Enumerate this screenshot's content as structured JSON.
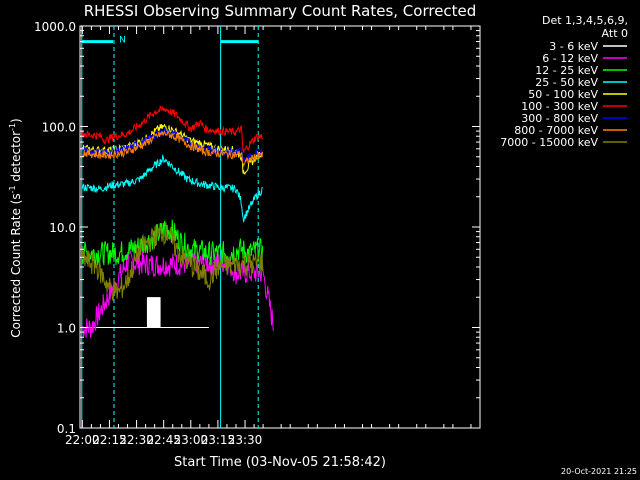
{
  "chart_data": {
    "type": "line",
    "title": "RHESSI Observing Summary Count Rates, Corrected",
    "xlabel": "Start Time (03-Nov-05 21:58:42)",
    "ylabel_main": "Corrected Count Rate (s",
    "ylabel_sup1": "-1",
    "ylabel_mid": " detector",
    "ylabel_sup2": "-1",
    "ylabel_end": ")",
    "yscale": "log",
    "ylim": [
      0.1,
      1000
    ],
    "xlim_min": [
      1318.7,
      1540
    ],
    "x_tick_minutes": [
      1320,
      1335,
      1350,
      1365,
      1380,
      1395,
      1410
    ],
    "x_tick_labels": [
      "22:00",
      "22:15",
      "22:30",
      "22:45",
      "23:00",
      "23:15",
      "23:30"
    ],
    "y_tick_values": [
      0.1,
      1.0,
      10.0,
      100.0,
      1000.0
    ],
    "y_tick_labels": [
      "0.1",
      "1.0",
      "10.0",
      "100.0",
      "1000.0"
    ],
    "legend_header": [
      "Det 1,3,4,5,6,9,",
      "Att 0"
    ],
    "legend_placement": "right",
    "vlines_dashed": [
      1337.5,
      1417.3
    ],
    "vlines_solid": [
      1319.7,
      1396.5
    ],
    "night_bars": [
      {
        "x": [
          1319.7,
          1337.0
        ],
        "y": 700
      },
      {
        "x": [
          1396.5,
          1417.3
        ],
        "y": 700
      }
    ],
    "night_label": "N",
    "series": [
      {
        "name": "3 - 6 keV",
        "color": "#000000",
        "points": [
          [
            1320,
            1
          ],
          [
            1390,
            1
          ]
        ]
      },
      {
        "name": "6 - 12 keV",
        "color": "#ff00ff",
        "points": [
          [
            1320,
            1
          ],
          [
            1325,
            1
          ],
          [
            1345,
            4.5
          ],
          [
            1360,
            4.2
          ],
          [
            1375,
            4.3
          ],
          [
            1390,
            4.4
          ],
          [
            1400,
            4.5
          ],
          [
            1405,
            3.5
          ],
          [
            1420,
            3.5
          ],
          [
            1426,
            1
          ]
        ]
      },
      {
        "name": "12 - 25 keV",
        "color": "#00ff00",
        "points": [
          [
            1320,
            5.5
          ],
          [
            1340,
            5.5
          ],
          [
            1352,
            6.5
          ],
          [
            1360,
            8
          ],
          [
            1364,
            9
          ],
          [
            1366,
            10
          ],
          [
            1370,
            9
          ],
          [
            1375,
            7
          ],
          [
            1380,
            6
          ],
          [
            1390,
            5.5
          ],
          [
            1400,
            5.5
          ],
          [
            1408,
            6
          ],
          [
            1412,
            5.5
          ],
          [
            1418,
            6
          ],
          [
            1420,
            5.5
          ]
        ]
      },
      {
        "name": "25 - 50 keV",
        "color": "#00ffff",
        "points": [
          [
            1320,
            25
          ],
          [
            1330,
            24
          ],
          [
            1336,
            26
          ],
          [
            1345,
            27
          ],
          [
            1352,
            30
          ],
          [
            1358,
            38
          ],
          [
            1365,
            48
          ],
          [
            1370,
            40
          ],
          [
            1378,
            30
          ],
          [
            1385,
            27
          ],
          [
            1395,
            25
          ],
          [
            1405,
            24
          ],
          [
            1408,
            18
          ],
          [
            1409,
            12
          ],
          [
            1412,
            15
          ],
          [
            1416,
            20
          ],
          [
            1420,
            24
          ]
        ]
      },
      {
        "name": "50 - 100 keV",
        "color": "#ffff00",
        "points": [
          [
            1320,
            60
          ],
          [
            1330,
            58
          ],
          [
            1336,
            58
          ],
          [
            1345,
            62
          ],
          [
            1355,
            75
          ],
          [
            1362,
            95
          ],
          [
            1366,
            100
          ],
          [
            1372,
            88
          ],
          [
            1380,
            72
          ],
          [
            1388,
            66
          ],
          [
            1395,
            60
          ],
          [
            1405,
            58
          ],
          [
            1408,
            50
          ],
          [
            1409,
            35
          ],
          [
            1412,
            40
          ],
          [
            1416,
            50
          ],
          [
            1420,
            55
          ]
        ]
      },
      {
        "name": "100 - 300 keV",
        "color": "#ff0000",
        "points": [
          [
            1320,
            85
          ],
          [
            1330,
            80
          ],
          [
            1333,
            72
          ],
          [
            1336,
            78
          ],
          [
            1345,
            85
          ],
          [
            1352,
            105
          ],
          [
            1360,
            140
          ],
          [
            1366,
            150
          ],
          [
            1372,
            130
          ],
          [
            1380,
            95
          ],
          [
            1385,
            110
          ],
          [
            1388,
            95
          ],
          [
            1395,
            90
          ],
          [
            1405,
            88
          ],
          [
            1408,
            95
          ],
          [
            1409,
            55
          ],
          [
            1412,
            65
          ],
          [
            1416,
            78
          ],
          [
            1420,
            80
          ]
        ]
      },
      {
        "name": "300 - 800 keV",
        "color": "#0000ff",
        "points": [
          [
            1320,
            58
          ],
          [
            1330,
            55
          ],
          [
            1336,
            57
          ],
          [
            1345,
            60
          ],
          [
            1355,
            72
          ],
          [
            1362,
            85
          ],
          [
            1366,
            90
          ],
          [
            1372,
            82
          ],
          [
            1380,
            68
          ],
          [
            1388,
            60
          ],
          [
            1395,
            58
          ],
          [
            1405,
            56
          ],
          [
            1408,
            58
          ],
          [
            1409,
            45
          ],
          [
            1412,
            50
          ],
          [
            1416,
            54
          ],
          [
            1420,
            55
          ]
        ]
      },
      {
        "name": "800 - 7000 keV",
        "color": "#ff8000",
        "points": [
          [
            1320,
            55
          ],
          [
            1330,
            52
          ],
          [
            1336,
            52
          ],
          [
            1345,
            56
          ],
          [
            1355,
            68
          ],
          [
            1362,
            82
          ],
          [
            1366,
            86
          ],
          [
            1372,
            78
          ],
          [
            1380,
            64
          ],
          [
            1388,
            56
          ],
          [
            1395,
            54
          ],
          [
            1405,
            52
          ],
          [
            1408,
            54
          ],
          [
            1409,
            42
          ],
          [
            1412,
            46
          ],
          [
            1416,
            50
          ],
          [
            1420,
            52
          ]
        ]
      },
      {
        "name": "7000 - 15000 keV",
        "color": "#808000",
        "points": [
          [
            1320,
            5
          ],
          [
            1328,
            4
          ],
          [
            1335,
            2.5
          ],
          [
            1340,
            2.2
          ],
          [
            1345,
            3
          ],
          [
            1352,
            6
          ],
          [
            1360,
            8
          ],
          [
            1364,
            9
          ],
          [
            1368,
            8.5
          ],
          [
            1372,
            6
          ],
          [
            1378,
            4.5
          ],
          [
            1385,
            3.5
          ],
          [
            1390,
            3
          ],
          [
            1395,
            4
          ],
          [
            1405,
            4.2
          ],
          [
            1412,
            4.3
          ],
          [
            1420,
            4.5
          ]
        ]
      }
    ],
    "highlight_blocks": [
      {
        "x": [
          1356,
          1363
        ],
        "y": [
          1,
          2
        ],
        "color": "#000000"
      }
    ]
  },
  "footer": {
    "timestamp": "20-Oct-2021 21:25"
  }
}
